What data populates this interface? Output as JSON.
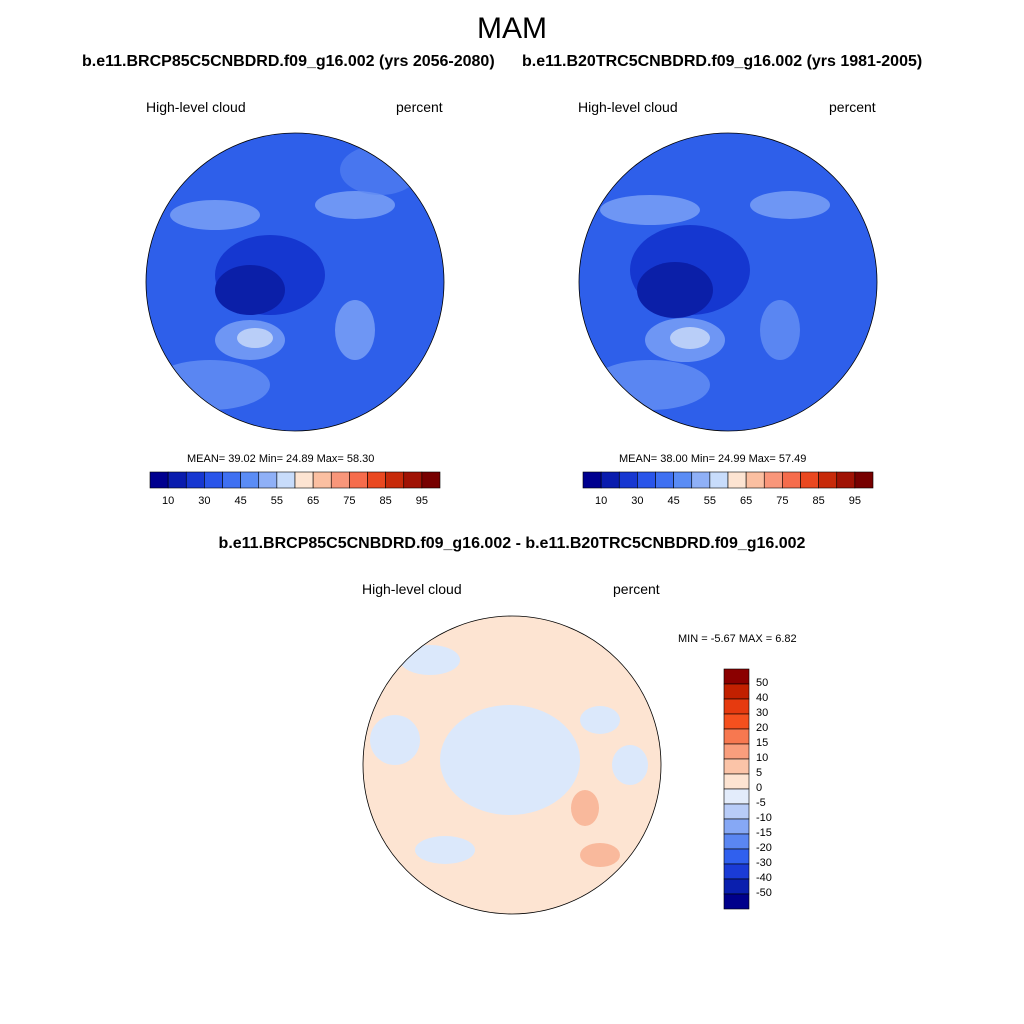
{
  "title": "MAM",
  "panels": [
    {
      "case_title": "b.e11.BRCP85C5CNBDRD.f09_g16.002 (yrs 2056-2080)",
      "left_label": "High-level cloud",
      "right_label": "percent",
      "stats": "MEAN=  39.02  Min=  24.89  Max=  58.30"
    },
    {
      "case_title": "b.e11.B20TRC5CNBDRD.f09_g16.002 (yrs 1981-2005)",
      "left_label": "High-level cloud",
      "right_label": "percent",
      "stats": "MEAN=  38.00  Min=  24.99  Max=  57.49"
    }
  ],
  "difference": {
    "title": "b.e11.BRCP85C5CNBDRD.f09_g16.002 - b.e11.B20TRC5CNBDRD.f09_g16.002",
    "left_label": "High-level cloud",
    "right_label": "percent",
    "stats": "MIN =  -5.67 MAX =   6.82"
  },
  "horizontal_colorbar": {
    "colors": [
      "#00008f",
      "#0a1cae",
      "#1737d1",
      "#2a55ea",
      "#3f70f2",
      "#5a8cf5",
      "#8fb0f7",
      "#c8dcfb",
      "#fde4d2",
      "#fbbfa1",
      "#f9967a",
      "#f66c4c",
      "#ea4820",
      "#c72a0a",
      "#a01204",
      "#770000"
    ],
    "ticks": [
      "10",
      "30",
      "45",
      "55",
      "65",
      "75",
      "85",
      "95"
    ]
  },
  "vertical_colorbar": {
    "colors": [
      "#00008b",
      "#0a1fae",
      "#1a3bd6",
      "#3060ee",
      "#5a86f2",
      "#86a8f5",
      "#b8ccf8",
      "#e3ecfb",
      "#fde4d2",
      "#fbc4a8",
      "#f99e7d",
      "#f77850",
      "#f5501e",
      "#e63a0f",
      "#c22000",
      "#8b0000"
    ],
    "ticks": [
      "50",
      "40",
      "30",
      "20",
      "15",
      "10",
      "5",
      "0",
      "-5",
      "-10",
      "-15",
      "-20",
      "-30",
      "-40",
      "-50"
    ]
  },
  "colors": {
    "map_base_blue": "#2e5fea",
    "map_dark_blue": "#1537d0",
    "map_darkest_blue": "#0b1fa8",
    "map_light_blue": "#6e96f4",
    "map_pale_blue": "#b9cef8",
    "diff_positive": "#fde4d2",
    "diff_negative": "#dbe8fb",
    "diff_strong_positive": "#f9b99c"
  }
}
